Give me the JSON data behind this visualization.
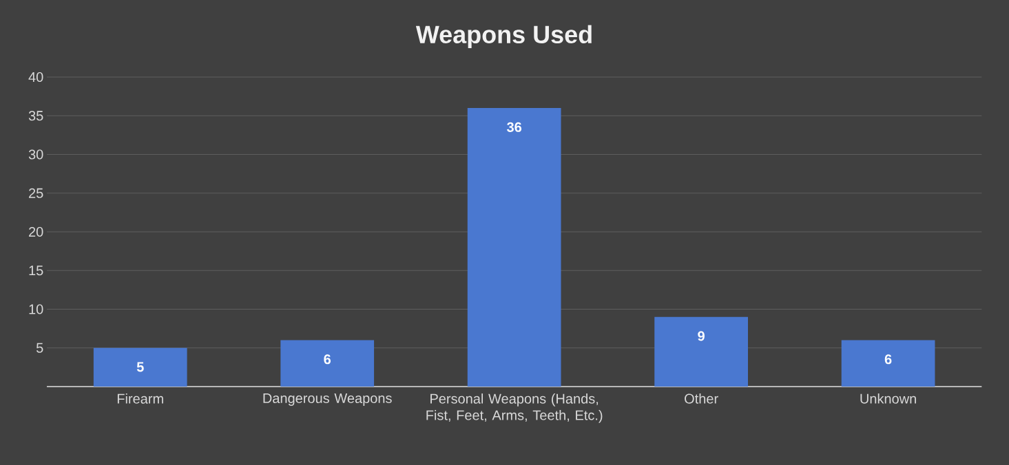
{
  "chart_data": {
    "type": "bar",
    "title": "Weapons Used",
    "categories": [
      "Firearm",
      "Dangerous Weapons",
      "Personal Weapons (Hands, Fist, Feet, Arms, Teeth, Etc.)",
      "Other",
      "Unknown"
    ],
    "values": [
      5,
      6,
      36,
      9,
      6
    ],
    "color": "#4a78d0",
    "ylim": [
      0,
      40
    ],
    "yticks": [
      5,
      10,
      15,
      20,
      25,
      30,
      35,
      40
    ],
    "grid": "y",
    "data_labels": true
  }
}
